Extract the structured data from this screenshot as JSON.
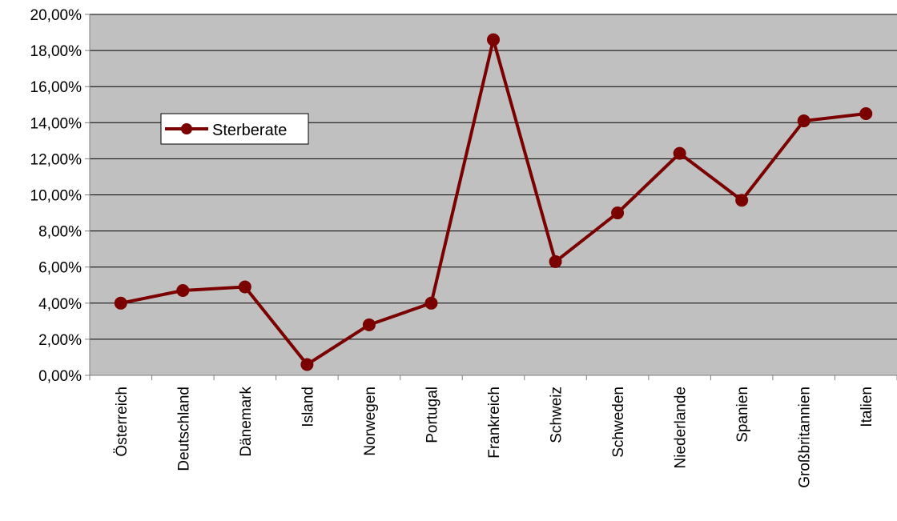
{
  "chart_data": {
    "type": "line",
    "title": "",
    "xlabel": "",
    "ylabel": "",
    "categories": [
      "Österreich",
      "Deutschland",
      "Dänemark",
      "Island",
      "Norwegen",
      "Portugal",
      "Frankreich",
      "Schweiz",
      "Schweden",
      "Niederlande",
      "Spanien",
      "Großbritannien",
      "Italien"
    ],
    "series": [
      {
        "name": "Sterberate",
        "color": "#7b0000",
        "values": [
          4.0,
          4.7,
          4.9,
          0.6,
          2.8,
          4.0,
          18.6,
          6.3,
          9.0,
          12.3,
          9.7,
          14.1,
          14.5
        ]
      }
    ],
    "ylim": [
      0,
      20
    ],
    "y_ticks": [
      0,
      2,
      4,
      6,
      8,
      10,
      12,
      14,
      16,
      18,
      20
    ],
    "y_tick_labels": [
      "0,00%",
      "2,00%",
      "4,00%",
      "6,00%",
      "8,00%",
      "10,00%",
      "12,00%",
      "14,00%",
      "16,00%",
      "18,00%",
      "20,00%"
    ],
    "grid": true,
    "plot_background": "#c0c0c0",
    "legend": {
      "position": "left-upper",
      "entries": [
        "Sterberate"
      ]
    }
  }
}
